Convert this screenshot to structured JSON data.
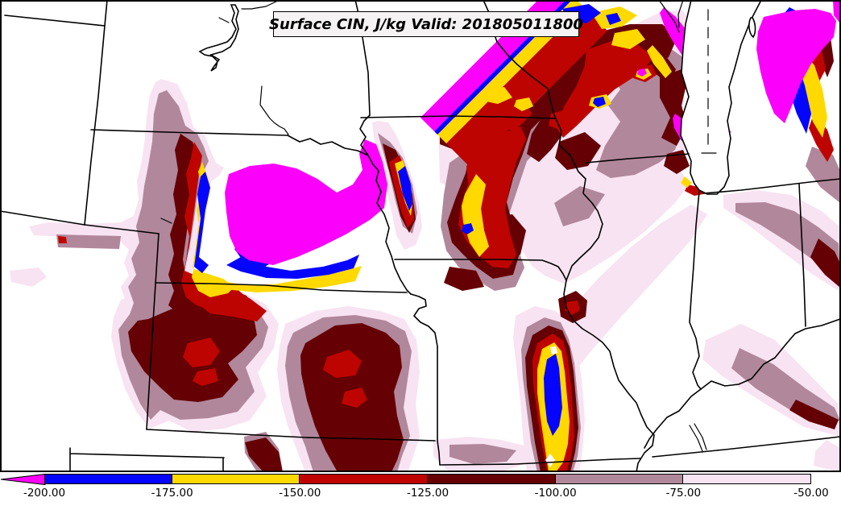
{
  "title": {
    "text": "Surface CIN, J/kg Valid: 201805011800"
  },
  "colorbar": {
    "orientation": "horizontal",
    "tick_labels": [
      "-200.00",
      "-175.00",
      "-150.00",
      "-125.00",
      "-100.00",
      "-75.00",
      "-50.00"
    ],
    "extend_left": {
      "label": "< -200",
      "color": "#FB00FB"
    },
    "segments": [
      {
        "from": "-200.00",
        "to": "-175.00",
        "color": "#0505FE"
      },
      {
        "from": "-175.00",
        "to": "-150.00",
        "color": "#FFD900"
      },
      {
        "from": "-150.00",
        "to": "-125.00",
        "color": "#BE0400"
      },
      {
        "from": "-125.00",
        "to": "-100.00",
        "color": "#650004"
      },
      {
        "from": "-100.00",
        "to": "-75.00",
        "color": "#B1879B"
      },
      {
        "from": "-75.00",
        "to": "-50.00",
        "color": "#F8E3F2"
      }
    ]
  },
  "chart_data": {
    "type": "heatmap",
    "title": "Surface CIN, J/kg Valid: 201805011800",
    "variable": "Surface CIN",
    "units": "J/kg",
    "valid_time": "201805011800",
    "style": "filled contour map over state boundaries with Lake Michigan",
    "contour_levels": [
      -200,
      -175,
      -150,
      -125,
      -100,
      -75,
      -50
    ],
    "level_colors": {
      "below_-200": "#FB00FB",
      "-200_to_-175": "#0505FE",
      "-175_to_-150": "#FFD900",
      "-150_to_-125": "#BE0400",
      "-125_to_-100": "#650004",
      "-100_to_-75": "#B1879B",
      "-75_to_-50": "#F8E3F2",
      "above_-50": "#FFFFFF"
    },
    "legend_position": "bottom",
    "grid": false
  }
}
